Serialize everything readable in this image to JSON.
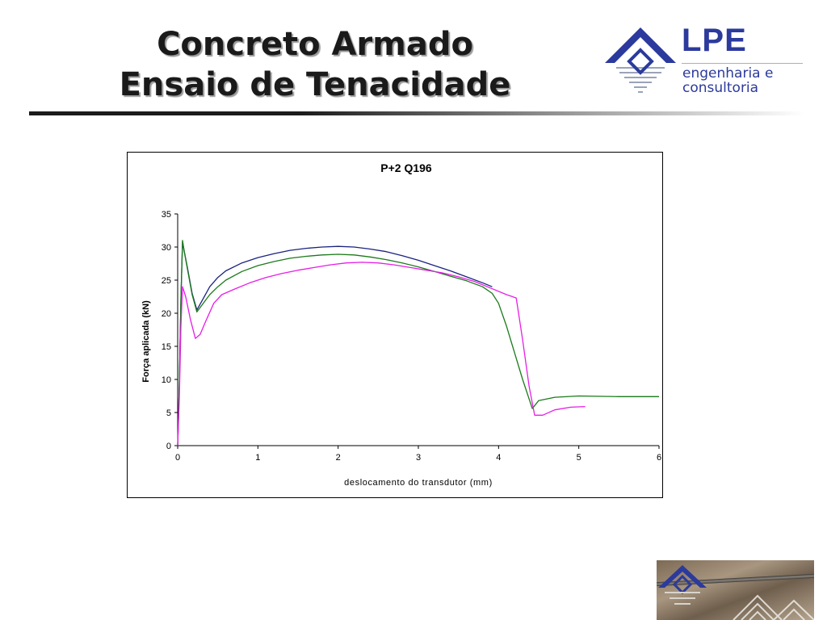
{
  "slide": {
    "title_line1": "Concreto Armado",
    "title_line2": "Ensaio de Tenacidade"
  },
  "logo": {
    "name": "LPE",
    "line1": "engenharia e",
    "line2": "consultoria",
    "icon": "house-diamond-logo-icon",
    "color": "#2b3a9c"
  },
  "chart_data": {
    "type": "line",
    "title": "P+2 Q196",
    "xlabel": "deslocamento do transdutor (mm)",
    "ylabel": "Força aplicada (kN)",
    "xlim": [
      0,
      6
    ],
    "ylim": [
      0,
      35
    ],
    "xticks": [
      "0",
      "1",
      "2",
      "3",
      "4",
      "5",
      "6"
    ],
    "yticks": [
      "0",
      "5",
      "10",
      "15",
      "20",
      "25",
      "30",
      "35"
    ],
    "grid": false,
    "legend": "none",
    "series": [
      {
        "color": "#1a237e",
        "points": [
          [
            0,
            0
          ],
          [
            0.02,
            9
          ],
          [
            0.04,
            22
          ],
          [
            0.06,
            30.8
          ],
          [
            0.08,
            29.5
          ],
          [
            0.12,
            27
          ],
          [
            0.18,
            23
          ],
          [
            0.24,
            20.5
          ],
          [
            0.3,
            21.8
          ],
          [
            0.4,
            24
          ],
          [
            0.5,
            25.4
          ],
          [
            0.6,
            26.4
          ],
          [
            0.8,
            27.6
          ],
          [
            1.0,
            28.4
          ],
          [
            1.2,
            29.0
          ],
          [
            1.4,
            29.5
          ],
          [
            1.6,
            29.8
          ],
          [
            1.8,
            30.0
          ],
          [
            2.0,
            30.1
          ],
          [
            2.2,
            30.0
          ],
          [
            2.4,
            29.7
          ],
          [
            2.6,
            29.3
          ],
          [
            2.8,
            28.7
          ],
          [
            3.0,
            28.0
          ],
          [
            3.2,
            27.2
          ],
          [
            3.4,
            26.4
          ],
          [
            3.6,
            25.5
          ],
          [
            3.8,
            24.6
          ],
          [
            3.92,
            24.0
          ]
        ]
      },
      {
        "color": "#1b7a1b",
        "points": [
          [
            0,
            0
          ],
          [
            0.02,
            9
          ],
          [
            0.04,
            22
          ],
          [
            0.06,
            31
          ],
          [
            0.08,
            29.5
          ],
          [
            0.12,
            26.8
          ],
          [
            0.18,
            22.8
          ],
          [
            0.24,
            20.2
          ],
          [
            0.3,
            21.2
          ],
          [
            0.4,
            22.8
          ],
          [
            0.5,
            24.0
          ],
          [
            0.6,
            25.0
          ],
          [
            0.8,
            26.3
          ],
          [
            1.0,
            27.2
          ],
          [
            1.2,
            27.8
          ],
          [
            1.4,
            28.3
          ],
          [
            1.6,
            28.6
          ],
          [
            1.8,
            28.8
          ],
          [
            2.0,
            28.9
          ],
          [
            2.2,
            28.8
          ],
          [
            2.4,
            28.5
          ],
          [
            2.6,
            28.1
          ],
          [
            2.8,
            27.6
          ],
          [
            3.0,
            27.0
          ],
          [
            3.2,
            26.3
          ],
          [
            3.4,
            25.6
          ],
          [
            3.6,
            24.9
          ],
          [
            3.8,
            24.0
          ],
          [
            3.92,
            23.0
          ],
          [
            4.0,
            21.5
          ],
          [
            4.1,
            18
          ],
          [
            4.2,
            14
          ],
          [
            4.3,
            10
          ],
          [
            4.42,
            5.6
          ],
          [
            4.5,
            6.8
          ],
          [
            4.7,
            7.3
          ],
          [
            5.0,
            7.5
          ],
          [
            5.5,
            7.4
          ],
          [
            6.0,
            7.4
          ]
        ]
      },
      {
        "color": "#e61ee6",
        "points": [
          [
            0,
            0
          ],
          [
            0.02,
            7
          ],
          [
            0.04,
            18
          ],
          [
            0.06,
            24
          ],
          [
            0.1,
            22.5
          ],
          [
            0.16,
            19
          ],
          [
            0.22,
            16.2
          ],
          [
            0.28,
            16.8
          ],
          [
            0.35,
            18.8
          ],
          [
            0.45,
            21.5
          ],
          [
            0.55,
            22.8
          ],
          [
            0.7,
            23.6
          ],
          [
            0.9,
            24.6
          ],
          [
            1.1,
            25.4
          ],
          [
            1.3,
            26.0
          ],
          [
            1.5,
            26.5
          ],
          [
            1.7,
            26.9
          ],
          [
            1.9,
            27.3
          ],
          [
            2.1,
            27.6
          ],
          [
            2.3,
            27.7
          ],
          [
            2.5,
            27.6
          ],
          [
            2.7,
            27.3
          ],
          [
            2.9,
            26.9
          ],
          [
            3.1,
            26.5
          ],
          [
            3.3,
            26.1
          ],
          [
            3.5,
            25.5
          ],
          [
            3.7,
            24.8
          ],
          [
            3.9,
            23.8
          ],
          [
            4.1,
            22.8
          ],
          [
            4.22,
            22.3
          ],
          [
            4.3,
            16
          ],
          [
            4.38,
            9
          ],
          [
            4.45,
            4.6
          ],
          [
            4.55,
            4.6
          ],
          [
            4.7,
            5.4
          ],
          [
            4.9,
            5.8
          ],
          [
            5.08,
            5.9
          ]
        ]
      }
    ]
  }
}
